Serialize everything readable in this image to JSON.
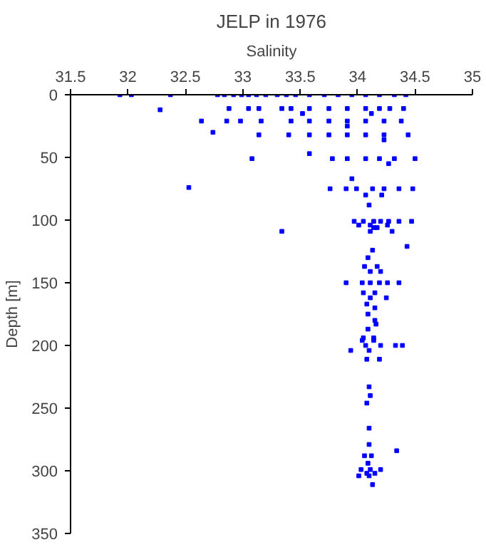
{
  "chart_data": {
    "type": "scatter",
    "title": "JELP in 1976",
    "xlabel": "Salinity",
    "ylabel": "Depth [m]",
    "xlim": [
      31.5,
      35
    ],
    "ylim": [
      350,
      0
    ],
    "xticks": [
      31.5,
      32,
      32.5,
      33,
      33.5,
      34,
      34.5,
      35
    ],
    "yticks": [
      0,
      50,
      100,
      150,
      200,
      250,
      300,
      350
    ],
    "grid": false,
    "marker": "square",
    "series": [
      {
        "color": "#0000ff",
        "x": [
          31.93,
          32.03,
          32.37,
          32.78,
          32.84,
          32.92,
          32.99,
          33.05,
          33.12,
          33.2,
          33.3,
          33.38,
          33.46,
          33.58,
          33.71,
          33.83,
          33.95,
          34.07,
          34.19,
          34.32,
          34.42,
          32.28,
          32.88,
          33.05,
          33.14,
          33.34,
          33.42,
          33.58,
          33.75,
          33.91,
          34.07,
          34.19,
          34.28,
          34.4,
          33.52,
          34.12,
          32.64,
          32.86,
          32.98,
          33.16,
          33.42,
          33.58,
          33.75,
          33.91,
          34.07,
          34.23,
          34.38,
          33.91,
          32.74,
          33.14,
          33.4,
          33.58,
          33.75,
          33.91,
          34.07,
          34.23,
          34.44,
          34.23,
          33.58,
          33.08,
          33.78,
          33.91,
          34.07,
          34.19,
          34.32,
          34.5,
          34.27,
          33.95,
          32.53,
          33.76,
          33.9,
          33.99,
          34.13,
          34.23,
          34.36,
          34.48,
          34.07,
          34.21,
          34.1,
          33.97,
          34.05,
          34.14,
          34.2,
          34.27,
          34.36,
          34.47,
          34.01,
          34.11,
          34.26,
          33.34,
          34.14,
          34.17,
          34.11,
          34.3,
          34.43,
          34.13,
          34.09,
          34.06,
          34.17,
          34.11,
          34.2,
          33.9,
          34.04,
          34.11,
          34.19,
          34.26,
          34.36,
          34.05,
          34.15,
          34.11,
          34.25,
          34.08,
          34.15,
          34.09,
          34.15,
          34.16,
          34.09,
          34.05,
          34.14,
          34.04,
          34.14,
          34.07,
          34.2,
          34.33,
          34.39,
          33.94,
          34.1,
          34.08,
          34.19,
          34.1,
          34.11,
          34.08,
          34.1,
          34.1,
          34.34,
          34.06,
          34.12,
          34.09,
          34.03,
          34.11,
          34.2,
          34.08,
          34.15,
          34.01,
          34.1,
          34.13
        ],
        "values": [
          0,
          0,
          0,
          0,
          0,
          0,
          0,
          0,
          0,
          0,
          0,
          0,
          0,
          0,
          0,
          0,
          0,
          0,
          0,
          0,
          0,
          12,
          11,
          11,
          11,
          11,
          11,
          11,
          11,
          11,
          11,
          11,
          11,
          11,
          15,
          15,
          21,
          21,
          21,
          21,
          21,
          21,
          21,
          21,
          21,
          21,
          21,
          25,
          30,
          32,
          32,
          32,
          32,
          32,
          32,
          32,
          32,
          36,
          47,
          51,
          51,
          51,
          51,
          51,
          51,
          51,
          55,
          67,
          74,
          75,
          75,
          75,
          75,
          75,
          75,
          75,
          80,
          80,
          88,
          101,
          101,
          101,
          101,
          101,
          101,
          101,
          104,
          104,
          104,
          109,
          106,
          106,
          109,
          109,
          121,
          124,
          130,
          137,
          137,
          141,
          141,
          150,
          150,
          150,
          150,
          150,
          150,
          158,
          158,
          162,
          162,
          167,
          170,
          175,
          180,
          183,
          187,
          194,
          194,
          196,
          196,
          200,
          200,
          200,
          200,
          204,
          204,
          211,
          211,
          233,
          240,
          246,
          266,
          279,
          284,
          288,
          288,
          294,
          299,
          299,
          299,
          302,
          302,
          304,
          304,
          311
        ]
      }
    ]
  }
}
